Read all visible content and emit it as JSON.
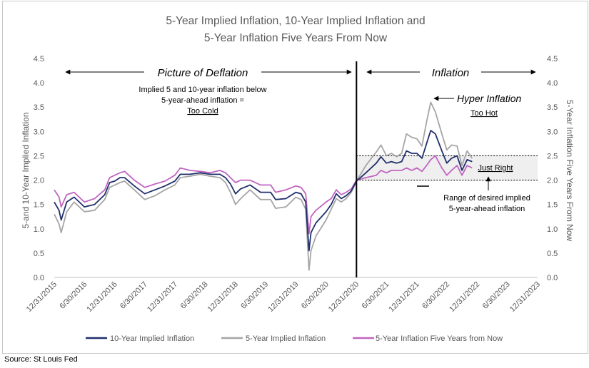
{
  "chart_data": {
    "type": "line",
    "title_lines": [
      "5-Year Implied Inflation, 10-Year Implied Inflation and",
      "5-Year Inflation Five Years From Now"
    ],
    "ylabel_left": "5-and 10-Year Implied Inflation",
    "ylabel_right": "5-Year Inflation Five Years From Now",
    "ylim": [
      0,
      4.5
    ],
    "yticks": [
      "0.0",
      "0.5",
      "1.0",
      "1.5",
      "2.0",
      "2.5",
      "3.0",
      "3.5",
      "4.0",
      "4.5"
    ],
    "x_tick_labels": [
      "12/31/2015",
      "6/30/2016",
      "12/31/2016",
      "6/30/2017",
      "12/31/2017",
      "6/30/2018",
      "12/31/2018",
      "6/30/2019",
      "12/31/2019",
      "6/30/2020",
      "12/31/2020",
      "6/30/2021",
      "12/31/2021",
      "6/30/2022",
      "12/31/2022",
      "6/30/2023",
      "12/31/2023"
    ],
    "x_range": [
      "2015-12-31",
      "2023-12-31"
    ],
    "grid": false,
    "legend_position": "bottom",
    "divider_date": "2020-12-31",
    "target_band": [
      2.0,
      2.5
    ],
    "series": [
      {
        "name": "10-Year Implied Inflation",
        "color": "#1f2f6b",
        "points": [
          [
            "2015-12-31",
            1.55
          ],
          [
            "2016-01-29",
            1.38
          ],
          [
            "2016-02-11",
            1.18
          ],
          [
            "2016-03-15",
            1.55
          ],
          [
            "2016-04-29",
            1.65
          ],
          [
            "2016-06-30",
            1.45
          ],
          [
            "2016-08-31",
            1.5
          ],
          [
            "2016-10-31",
            1.7
          ],
          [
            "2016-11-30",
            1.95
          ],
          [
            "2016-12-31",
            1.98
          ],
          [
            "2017-01-31",
            2.05
          ],
          [
            "2017-02-28",
            2.05
          ],
          [
            "2017-04-28",
            1.88
          ],
          [
            "2017-06-30",
            1.72
          ],
          [
            "2017-08-31",
            1.8
          ],
          [
            "2017-10-31",
            1.88
          ],
          [
            "2017-12-29",
            1.98
          ],
          [
            "2018-01-31",
            2.12
          ],
          [
            "2018-03-30",
            2.12
          ],
          [
            "2018-05-31",
            2.15
          ],
          [
            "2018-07-31",
            2.12
          ],
          [
            "2018-09-28",
            2.12
          ],
          [
            "2018-10-31",
            2.05
          ],
          [
            "2018-11-30",
            1.92
          ],
          [
            "2018-12-31",
            1.72
          ],
          [
            "2019-01-31",
            1.82
          ],
          [
            "2019-03-29",
            1.9
          ],
          [
            "2019-05-31",
            1.75
          ],
          [
            "2019-07-31",
            1.75
          ],
          [
            "2019-08-30",
            1.6
          ],
          [
            "2019-10-31",
            1.62
          ],
          [
            "2019-12-31",
            1.75
          ],
          [
            "2020-01-31",
            1.72
          ],
          [
            "2020-02-28",
            1.55
          ],
          [
            "2020-03-19",
            0.55
          ],
          [
            "2020-03-31",
            0.92
          ],
          [
            "2020-04-30",
            1.12
          ],
          [
            "2020-06-30",
            1.35
          ],
          [
            "2020-07-31",
            1.5
          ],
          [
            "2020-08-31",
            1.72
          ],
          [
            "2020-09-30",
            1.62
          ],
          [
            "2020-10-30",
            1.68
          ],
          [
            "2020-11-30",
            1.78
          ],
          [
            "2020-12-31",
            1.98
          ],
          [
            "2021-02-26",
            2.15
          ],
          [
            "2021-04-30",
            2.35
          ],
          [
            "2021-05-28",
            2.48
          ],
          [
            "2021-06-30",
            2.35
          ],
          [
            "2021-07-30",
            2.38
          ],
          [
            "2021-08-31",
            2.35
          ],
          [
            "2021-09-30",
            2.38
          ],
          [
            "2021-10-29",
            2.6
          ],
          [
            "2021-11-30",
            2.55
          ],
          [
            "2021-12-31",
            2.55
          ],
          [
            "2022-01-31",
            2.45
          ],
          [
            "2022-02-28",
            2.75
          ],
          [
            "2022-03-25",
            3.02
          ],
          [
            "2022-04-22",
            2.95
          ],
          [
            "2022-05-31",
            2.6
          ],
          [
            "2022-06-30",
            2.35
          ],
          [
            "2022-07-29",
            2.45
          ],
          [
            "2022-08-31",
            2.5
          ],
          [
            "2022-09-30",
            2.2
          ],
          [
            "2022-10-31",
            2.42
          ],
          [
            "2022-11-30",
            2.38
          ]
        ]
      },
      {
        "name": "5-Year Implied Inflation",
        "color": "#a5a5a5",
        "points": [
          [
            "2015-12-31",
            1.3
          ],
          [
            "2016-01-29",
            1.1
          ],
          [
            "2016-02-11",
            0.92
          ],
          [
            "2016-03-15",
            1.35
          ],
          [
            "2016-04-29",
            1.55
          ],
          [
            "2016-06-30",
            1.35
          ],
          [
            "2016-08-31",
            1.38
          ],
          [
            "2016-10-31",
            1.6
          ],
          [
            "2016-11-30",
            1.85
          ],
          [
            "2016-12-31",
            1.9
          ],
          [
            "2017-01-31",
            1.95
          ],
          [
            "2017-02-28",
            1.98
          ],
          [
            "2017-04-28",
            1.8
          ],
          [
            "2017-06-30",
            1.6
          ],
          [
            "2017-08-31",
            1.68
          ],
          [
            "2017-10-31",
            1.8
          ],
          [
            "2017-12-29",
            1.9
          ],
          [
            "2018-01-31",
            2.05
          ],
          [
            "2018-03-30",
            2.08
          ],
          [
            "2018-05-31",
            2.12
          ],
          [
            "2018-07-31",
            2.08
          ],
          [
            "2018-09-28",
            2.05
          ],
          [
            "2018-10-31",
            1.95
          ],
          [
            "2018-11-30",
            1.75
          ],
          [
            "2018-12-31",
            1.5
          ],
          [
            "2019-01-31",
            1.62
          ],
          [
            "2019-03-29",
            1.8
          ],
          [
            "2019-05-31",
            1.6
          ],
          [
            "2019-07-31",
            1.6
          ],
          [
            "2019-08-30",
            1.42
          ],
          [
            "2019-10-31",
            1.45
          ],
          [
            "2019-12-31",
            1.65
          ],
          [
            "2020-01-31",
            1.6
          ],
          [
            "2020-02-28",
            1.4
          ],
          [
            "2020-03-19",
            0.15
          ],
          [
            "2020-03-31",
            0.55
          ],
          [
            "2020-04-30",
            0.85
          ],
          [
            "2020-06-30",
            1.18
          ],
          [
            "2020-07-31",
            1.4
          ],
          [
            "2020-08-31",
            1.62
          ],
          [
            "2020-09-30",
            1.55
          ],
          [
            "2020-10-30",
            1.62
          ],
          [
            "2020-11-30",
            1.75
          ],
          [
            "2020-12-31",
            1.98
          ],
          [
            "2021-02-26",
            2.3
          ],
          [
            "2021-04-30",
            2.58
          ],
          [
            "2021-05-28",
            2.72
          ],
          [
            "2021-06-30",
            2.5
          ],
          [
            "2021-07-30",
            2.55
          ],
          [
            "2021-08-31",
            2.48
          ],
          [
            "2021-09-30",
            2.55
          ],
          [
            "2021-10-29",
            2.95
          ],
          [
            "2021-11-30",
            2.88
          ],
          [
            "2021-12-31",
            2.85
          ],
          [
            "2022-01-31",
            2.7
          ],
          [
            "2022-02-28",
            3.2
          ],
          [
            "2022-03-25",
            3.6
          ],
          [
            "2022-04-22",
            3.4
          ],
          [
            "2022-05-31",
            2.95
          ],
          [
            "2022-06-30",
            2.62
          ],
          [
            "2022-07-29",
            2.72
          ],
          [
            "2022-08-31",
            2.7
          ],
          [
            "2022-09-30",
            2.3
          ],
          [
            "2022-10-31",
            2.6
          ],
          [
            "2022-11-30",
            2.45
          ]
        ]
      },
      {
        "name": "5-Year Inflation Five Years from Now",
        "color": "#c065c0",
        "points": [
          [
            "2015-12-31",
            1.8
          ],
          [
            "2016-01-29",
            1.65
          ],
          [
            "2016-02-11",
            1.45
          ],
          [
            "2016-03-15",
            1.7
          ],
          [
            "2016-04-29",
            1.75
          ],
          [
            "2016-06-30",
            1.55
          ],
          [
            "2016-08-31",
            1.62
          ],
          [
            "2016-10-31",
            1.8
          ],
          [
            "2016-11-30",
            2.05
          ],
          [
            "2016-12-31",
            2.1
          ],
          [
            "2017-01-31",
            2.15
          ],
          [
            "2017-02-28",
            2.18
          ],
          [
            "2017-04-28",
            2.0
          ],
          [
            "2017-06-30",
            1.85
          ],
          [
            "2017-08-31",
            1.92
          ],
          [
            "2017-10-31",
            1.98
          ],
          [
            "2017-12-29",
            2.1
          ],
          [
            "2018-01-31",
            2.25
          ],
          [
            "2018-03-30",
            2.2
          ],
          [
            "2018-05-31",
            2.18
          ],
          [
            "2018-07-31",
            2.15
          ],
          [
            "2018-09-28",
            2.2
          ],
          [
            "2018-10-31",
            2.15
          ],
          [
            "2018-11-30",
            2.05
          ],
          [
            "2018-12-31",
            1.95
          ],
          [
            "2019-01-31",
            2.0
          ],
          [
            "2019-03-29",
            2.0
          ],
          [
            "2019-05-31",
            1.9
          ],
          [
            "2019-07-31",
            1.9
          ],
          [
            "2019-08-30",
            1.75
          ],
          [
            "2019-10-31",
            1.8
          ],
          [
            "2019-12-31",
            1.88
          ],
          [
            "2020-01-31",
            1.85
          ],
          [
            "2020-02-28",
            1.72
          ],
          [
            "2020-03-19",
            0.9
          ],
          [
            "2020-03-31",
            1.25
          ],
          [
            "2020-04-30",
            1.38
          ],
          [
            "2020-06-30",
            1.55
          ],
          [
            "2020-07-31",
            1.62
          ],
          [
            "2020-08-31",
            1.8
          ],
          [
            "2020-09-30",
            1.7
          ],
          [
            "2020-10-30",
            1.75
          ],
          [
            "2020-11-30",
            1.82
          ],
          [
            "2020-12-31",
            2.0
          ],
          [
            "2021-02-26",
            2.05
          ],
          [
            "2021-04-30",
            2.1
          ],
          [
            "2021-05-28",
            2.2
          ],
          [
            "2021-06-30",
            2.15
          ],
          [
            "2021-07-30",
            2.2
          ],
          [
            "2021-08-31",
            2.2
          ],
          [
            "2021-09-30",
            2.2
          ],
          [
            "2021-10-29",
            2.25
          ],
          [
            "2021-11-30",
            2.2
          ],
          [
            "2021-12-31",
            2.25
          ],
          [
            "2022-01-31",
            2.18
          ],
          [
            "2022-02-28",
            2.3
          ],
          [
            "2022-03-25",
            2.42
          ],
          [
            "2022-04-22",
            2.5
          ],
          [
            "2022-05-31",
            2.25
          ],
          [
            "2022-06-30",
            2.1
          ],
          [
            "2022-07-29",
            2.2
          ],
          [
            "2022-08-31",
            2.3
          ],
          [
            "2022-09-30",
            2.1
          ],
          [
            "2022-10-31",
            2.3
          ],
          [
            "2022-11-30",
            2.25
          ]
        ]
      }
    ],
    "annotations": {
      "deflation_heading": "Picture of Deflation",
      "deflation_note_lines": [
        "Implied 5 and 10-year inflation below",
        "5-year-ahead inflation ="
      ],
      "deflation_verdict": "Too Cold",
      "inflation_heading": "Inflation",
      "hyper_label": "Hyper Inflation",
      "hyper_verdict": "Too Hot",
      "just_right": "Just Right",
      "range_note_lines": [
        "Range of desired implied",
        "5-year-ahead inflation"
      ]
    },
    "source": "Source: St Louis Fed"
  }
}
